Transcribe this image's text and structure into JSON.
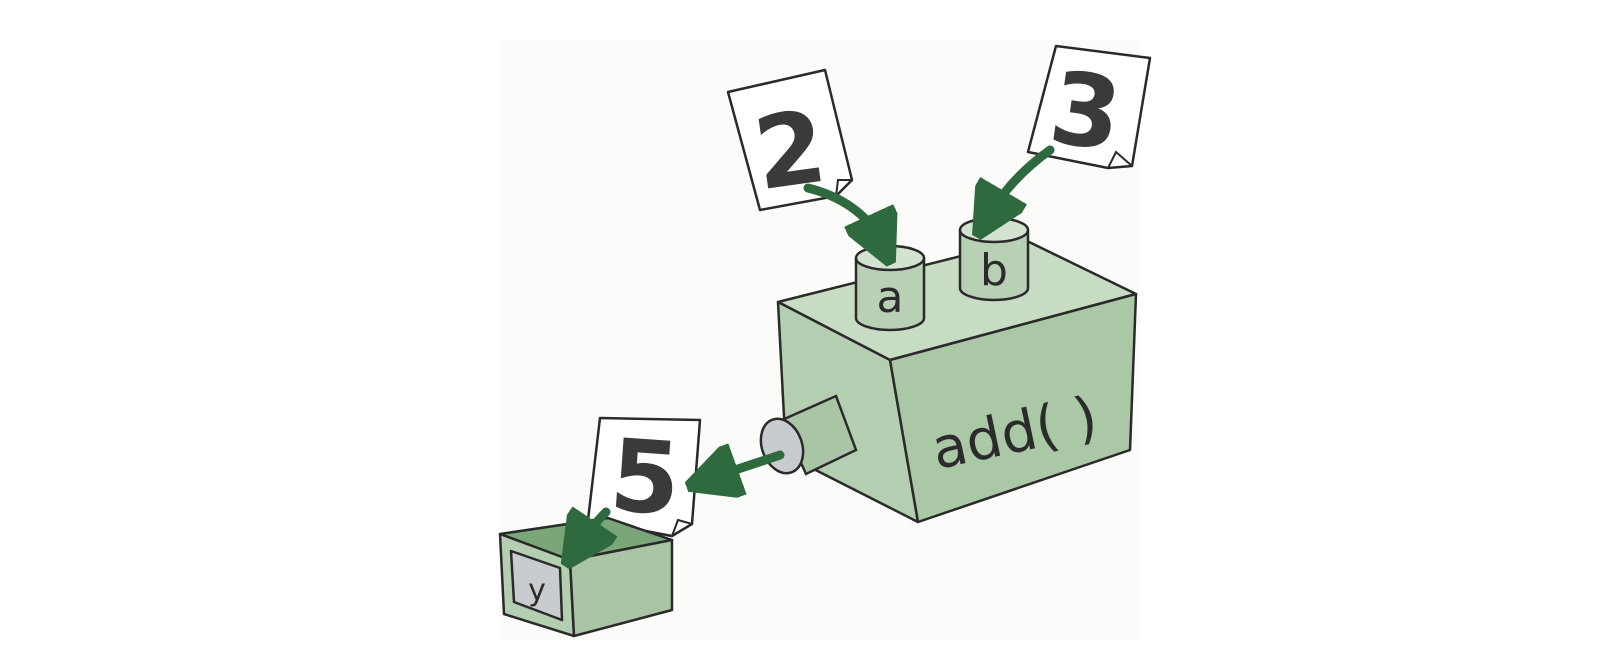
{
  "diagram": {
    "function_label": "add( )",
    "inputs": [
      {
        "param": "a",
        "value": "2"
      },
      {
        "param": "b",
        "value": "3"
      }
    ],
    "output": {
      "value": "5",
      "variable": "y"
    },
    "colors": {
      "box_front": "#b5cfb2",
      "box_top": "#c7dcc3",
      "box_side": "#a6c3a2",
      "arrow": "#2e6a3e",
      "outline": "#2a2a2a",
      "paper": "#ffffff",
      "number": "#3a3a3a",
      "window": "#c9cccf"
    }
  }
}
